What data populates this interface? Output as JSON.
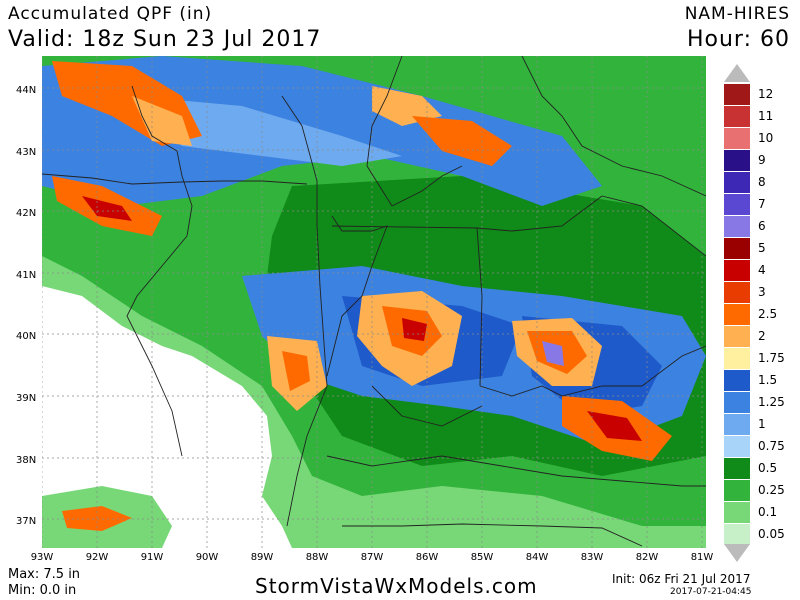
{
  "header": {
    "title": "Accumulated QPF (in)",
    "valid": "Valid: 18z Sun 23 Jul 2017",
    "model": "NAM-HIRES",
    "hour": "Hour: 60"
  },
  "footer": {
    "max": "Max: 7.5 in",
    "min": "Min: 0.0 in",
    "site": "StormVistaWxModels.com",
    "init": "Init: 06z Fri 21 Jul 2017",
    "stamp": "2017-07-21-04:45"
  },
  "latitude_labels": [
    "44N",
    "43N",
    "42N",
    "41N",
    "40N",
    "39N",
    "38N",
    "37N"
  ],
  "longitude_labels": [
    "93W",
    "92W",
    "91W",
    "90W",
    "89W",
    "88W",
    "87W",
    "86W",
    "85W",
    "84W",
    "83W",
    "82W",
    "81W"
  ],
  "legend": [
    {
      "label": "12",
      "color": "#a01818"
    },
    {
      "label": "11",
      "color": "#c83232"
    },
    {
      "label": "10",
      "color": "#e87070"
    },
    {
      "label": "9",
      "color": "#2a1088"
    },
    {
      "label": "8",
      "color": "#3c28b4"
    },
    {
      "label": "7",
      "color": "#5a48d2"
    },
    {
      "label": "6",
      "color": "#8878e6"
    },
    {
      "label": "5",
      "color": "#9a0000"
    },
    {
      "label": "4",
      "color": "#c80000"
    },
    {
      "label": "3",
      "color": "#e83c00"
    },
    {
      "label": "2.5",
      "color": "#ff6a00"
    },
    {
      "label": "2",
      "color": "#ffb050"
    },
    {
      "label": "1.75",
      "color": "#fff0a0"
    },
    {
      "label": "1.5",
      "color": "#1e5aca"
    },
    {
      "label": "1.25",
      "color": "#3c82e0"
    },
    {
      "label": "1",
      "color": "#6eaaf0"
    },
    {
      "label": "0.75",
      "color": "#a8d4fa"
    },
    {
      "label": "0.5",
      "color": "#108a18"
    },
    {
      "label": "0.25",
      "color": "#32b43c"
    },
    {
      "label": "0.1",
      "color": "#78d878"
    },
    {
      "label": "0.05",
      "color": "#c8f0c8"
    }
  ]
}
